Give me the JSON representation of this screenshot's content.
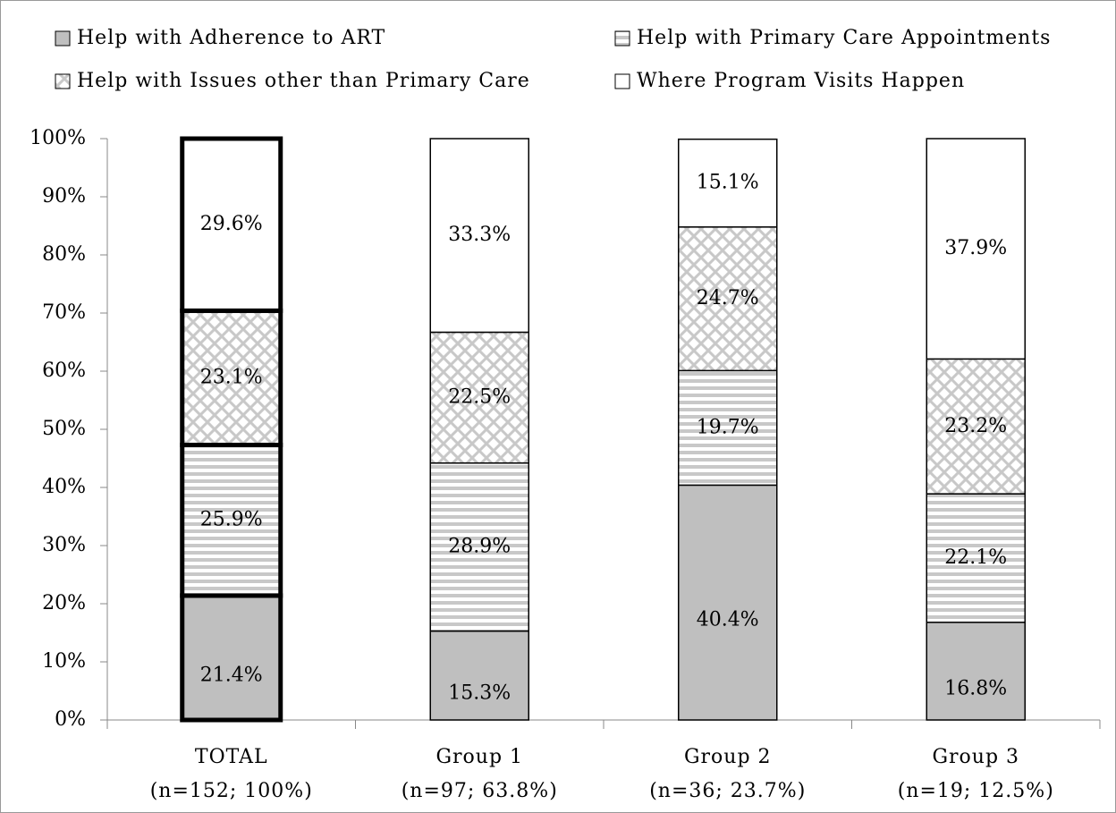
{
  "chart_data": {
    "type": "stacked_bar",
    "categories": [
      [
        "TOTAL",
        "(n=152; 100%)"
      ],
      [
        "Group 1",
        "(n=97; 63.8%)"
      ],
      [
        "Group 2",
        "(n=36; 23.7%)"
      ],
      [
        "Group 3",
        "(n=19; 12.5%)"
      ]
    ],
    "series": [
      {
        "name": "Help with Adherence to ART",
        "color": "#bfbfbf",
        "values": [
          21.4,
          15.3,
          40.4,
          16.8
        ],
        "value_labels": [
          "21.4%",
          "15.3%",
          "40.4%",
          "16.8%"
        ]
      },
      {
        "name": "Help with Primary Care Appointments",
        "color": "#bfbfbf",
        "values": [
          25.9,
          28.9,
          19.7,
          22.1
        ],
        "value_labels": [
          "25.9%",
          "28.9%",
          "19.7%",
          "22.1%"
        ]
      },
      {
        "name": "Help with Issues other than Primary Care",
        "color": "#bfbfbf",
        "values": [
          23.1,
          22.5,
          24.7,
          23.2
        ],
        "value_labels": [
          "23.1%",
          "22.5%",
          "24.7%",
          "23.2%"
        ]
      },
      {
        "name": "Where Program Visits Happen",
        "color": "#ffffff",
        "values": [
          29.6,
          33.3,
          15.1,
          37.9
        ],
        "value_labels": [
          "29.6%",
          "33.3%",
          "15.1%",
          "37.9%"
        ]
      }
    ],
    "ylim": [
      0,
      100
    ],
    "yticks": [
      {
        "value": 0,
        "label": "0%"
      },
      {
        "value": 10,
        "label": "10%"
      },
      {
        "value": 20,
        "label": "20%"
      },
      {
        "value": 30,
        "label": "30%"
      },
      {
        "value": 40,
        "label": "40%"
      },
      {
        "value": 50,
        "label": "50%"
      },
      {
        "value": 60,
        "label": "60%"
      },
      {
        "value": 70,
        "label": "70%"
      },
      {
        "value": 80,
        "label": "80%"
      },
      {
        "value": 90,
        "label": "90%"
      },
      {
        "value": 100,
        "label": "100%"
      }
    ],
    "legend": "top"
  }
}
